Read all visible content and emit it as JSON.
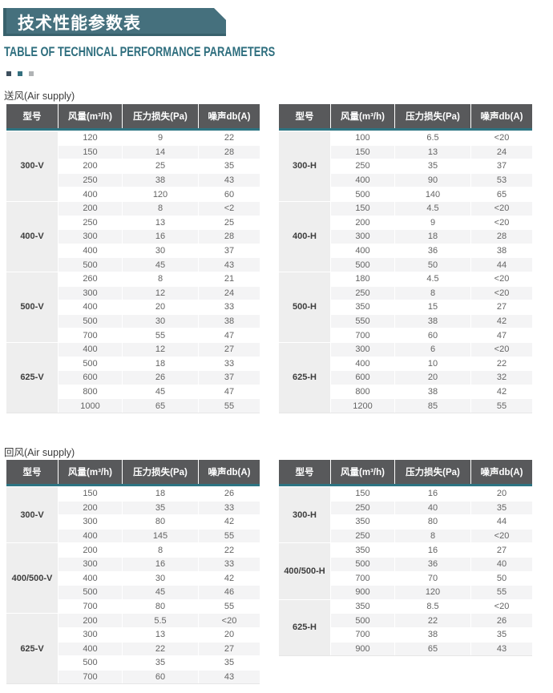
{
  "title": "技术性能参数表",
  "subtitle": "TABLE OF TECHNICAL PERFORMANCE PARAMETERS",
  "sections": {
    "supply_label": "送风(Air supply)",
    "return_label": "回风(Air supply)"
  },
  "table_headers": [
    "型号",
    "风量(m³/h)",
    "压力损失(Pa)",
    "噪声db(A)"
  ],
  "colors": {
    "banner": "#45707d",
    "subtitle": "#2e6e7e",
    "headbg": "#58595b",
    "tealbar": "#2d7482",
    "dot1": "#3e4f5e",
    "dot2": "#35707f",
    "dot3": "#b0b3b5"
  },
  "tables": {
    "supply_v": {
      "groups": [
        {
          "model": "300-V",
          "rows": [
            [
              "120",
              "9",
              "22"
            ],
            [
              "150",
              "14",
              "28"
            ],
            [
              "200",
              "25",
              "35"
            ],
            [
              "250",
              "38",
              "43"
            ],
            [
              "400",
              "120",
              "60"
            ]
          ]
        },
        {
          "model": "400-V",
          "rows": [
            [
              "200",
              "8",
              "<2"
            ],
            [
              "250",
              "13",
              "25"
            ],
            [
              "300",
              "16",
              "28"
            ],
            [
              "400",
              "30",
              "37"
            ],
            [
              "500",
              "45",
              "43"
            ]
          ]
        },
        {
          "model": "500-V",
          "rows": [
            [
              "260",
              "8",
              "21"
            ],
            [
              "300",
              "12",
              "24"
            ],
            [
              "400",
              "20",
              "33"
            ],
            [
              "500",
              "30",
              "38"
            ],
            [
              "700",
              "55",
              "47"
            ]
          ]
        },
        {
          "model": "625-V",
          "rows": [
            [
              "400",
              "12",
              "27"
            ],
            [
              "500",
              "18",
              "33"
            ],
            [
              "600",
              "26",
              "37"
            ],
            [
              "800",
              "45",
              "47"
            ],
            [
              "1000",
              "65",
              "55"
            ]
          ]
        }
      ]
    },
    "supply_h": {
      "groups": [
        {
          "model": "300-H",
          "rows": [
            [
              "100",
              "6.5",
              "<20"
            ],
            [
              "150",
              "13",
              "24"
            ],
            [
              "250",
              "35",
              "37"
            ],
            [
              "400",
              "90",
              "53"
            ],
            [
              "500",
              "140",
              "65"
            ]
          ]
        },
        {
          "model": "400-H",
          "rows": [
            [
              "150",
              "4.5",
              "<20"
            ],
            [
              "200",
              "9",
              "<20"
            ],
            [
              "300",
              "18",
              "28"
            ],
            [
              "400",
              "36",
              "38"
            ],
            [
              "500",
              "50",
              "44"
            ]
          ]
        },
        {
          "model": "500-H",
          "rows": [
            [
              "180",
              "4.5",
              "<20"
            ],
            [
              "250",
              "8",
              "<20"
            ],
            [
              "350",
              "15",
              "27"
            ],
            [
              "550",
              "38",
              "42"
            ],
            [
              "700",
              "60",
              "47"
            ]
          ]
        },
        {
          "model": "625-H",
          "rows": [
            [
              "300",
              "6",
              "<20"
            ],
            [
              "400",
              "10",
              "22"
            ],
            [
              "600",
              "20",
              "32"
            ],
            [
              "800",
              "38",
              "42"
            ],
            [
              "1200",
              "85",
              "55"
            ]
          ]
        }
      ]
    },
    "return_v": {
      "groups": [
        {
          "model": "300-V",
          "rows": [
            [
              "150",
              "18",
              "26"
            ],
            [
              "200",
              "35",
              "33"
            ],
            [
              "300",
              "80",
              "42"
            ],
            [
              "400",
              "145",
              "55"
            ]
          ]
        },
        {
          "model": "400/500-V",
          "rows": [
            [
              "200",
              "8",
              "22"
            ],
            [
              "300",
              "16",
              "33"
            ],
            [
              "400",
              "30",
              "42"
            ],
            [
              "500",
              "45",
              "46"
            ],
            [
              "700",
              "80",
              "55"
            ]
          ]
        },
        {
          "model": "625-V",
          "rows": [
            [
              "200",
              "5.5",
              "<20"
            ],
            [
              "300",
              "13",
              "20"
            ],
            [
              "400",
              "22",
              "27"
            ],
            [
              "500",
              "35",
              "35"
            ],
            [
              "700",
              "60",
              "43"
            ]
          ]
        }
      ]
    },
    "return_h": {
      "groups": [
        {
          "model": "300-H",
          "rows": [
            [
              "150",
              "16",
              "20"
            ],
            [
              "250",
              "40",
              "35"
            ],
            [
              "350",
              "80",
              "44"
            ],
            [
              "250",
              "8",
              "<20"
            ]
          ]
        },
        {
          "model": "400/500-H",
          "rows": [
            [
              "350",
              "16",
              "27"
            ],
            [
              "500",
              "36",
              "40"
            ],
            [
              "700",
              "70",
              "50"
            ],
            [
              "900",
              "120",
              "55"
            ]
          ]
        },
        {
          "model": "625-H",
          "rows": [
            [
              "350",
              "8.5",
              "<20"
            ],
            [
              "500",
              "22",
              "26"
            ],
            [
              "700",
              "38",
              "35"
            ],
            [
              "900",
              "65",
              "43"
            ]
          ]
        }
      ]
    }
  }
}
